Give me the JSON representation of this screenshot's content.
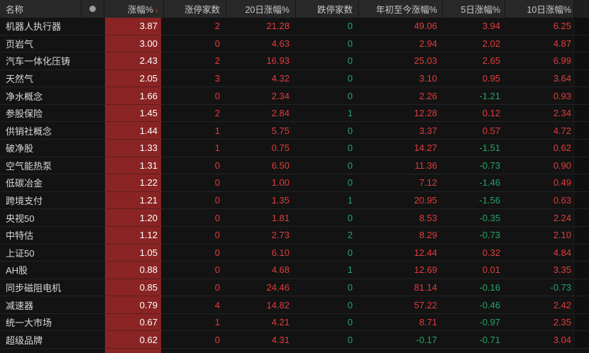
{
  "header": {
    "columns": [
      {
        "key": "name",
        "label": "名称"
      },
      {
        "key": "dot",
        "label": ""
      },
      {
        "key": "change",
        "label": "涨幅%"
      },
      {
        "key": "limit_up",
        "label": "涨停家数"
      },
      {
        "key": "d20",
        "label": "20日涨幅%"
      },
      {
        "key": "limit_down",
        "label": "跌停家数"
      },
      {
        "key": "ytd",
        "label": "年初至今涨幅%"
      },
      {
        "key": "d5",
        "label": "5日涨幅%"
      },
      {
        "key": "d10",
        "label": "10日涨幅%"
      }
    ],
    "sort_icon": "↓",
    "sorted_column": "涨幅%",
    "sort_direction": "desc"
  },
  "colors": {
    "up_red": "#e23c3c",
    "down_green": "#23a566",
    "heat_bar_red": "#8a2424",
    "header_bg": "#282828",
    "row_bg": "#131313",
    "bar_text": "#ffffff",
    "sort_arrow": "#e5472e"
  },
  "chart_data": {
    "type": "table",
    "columns": [
      "名称",
      "涨幅%",
      "涨停家数",
      "20日涨幅%",
      "跌停家数",
      "年初至今涨幅%",
      "5日涨幅%",
      "10日涨幅%"
    ],
    "rows_note": "sorted by 涨幅% descending"
  },
  "rows": [
    {
      "name": "机器人执行器",
      "change": "3.87",
      "limit_up": "2",
      "d20": "21.28",
      "limit_down": "0",
      "ytd": "49.06",
      "d5": "3.94",
      "d10": "6.25"
    },
    {
      "name": "页岩气",
      "change": "3.00",
      "limit_up": "0",
      "d20": "4.63",
      "limit_down": "0",
      "ytd": "2.94",
      "d5": "2.02",
      "d10": "4.87"
    },
    {
      "name": "汽车一体化压铸",
      "change": "2.43",
      "limit_up": "2",
      "d20": "16.93",
      "limit_down": "0",
      "ytd": "25.03",
      "d5": "2.65",
      "d10": "6.99"
    },
    {
      "name": "天然气",
      "change": "2.05",
      "limit_up": "3",
      "d20": "4.32",
      "limit_down": "0",
      "ytd": "3.10",
      "d5": "0.95",
      "d10": "3.64"
    },
    {
      "name": "净水概念",
      "change": "1.66",
      "limit_up": "0",
      "d20": "2.34",
      "limit_down": "0",
      "ytd": "2.26",
      "d5": "-1.21",
      "d10": "0.93"
    },
    {
      "name": "参股保险",
      "change": "1.45",
      "limit_up": "2",
      "d20": "2.84",
      "limit_down": "1",
      "ytd": "12.28",
      "d5": "0.12",
      "d10": "2.34"
    },
    {
      "name": "供销社概念",
      "change": "1.44",
      "limit_up": "1",
      "d20": "5.75",
      "limit_down": "0",
      "ytd": "3.37",
      "d5": "0.57",
      "d10": "4.72"
    },
    {
      "name": "破净股",
      "change": "1.33",
      "limit_up": "1",
      "d20": "0.75",
      "limit_down": "0",
      "ytd": "14.27",
      "d5": "-1.51",
      "d10": "0.62"
    },
    {
      "name": "空气能热泵",
      "change": "1.31",
      "limit_up": "0",
      "d20": "6.50",
      "limit_down": "0",
      "ytd": "11.36",
      "d5": "-0.73",
      "d10": "0.90"
    },
    {
      "name": "低碳冶金",
      "change": "1.22",
      "limit_up": "0",
      "d20": "1.00",
      "limit_down": "0",
      "ytd": "7.12",
      "d5": "-1.46",
      "d10": "0.49"
    },
    {
      "name": "跨境支付",
      "change": "1.21",
      "limit_up": "0",
      "d20": "1.35",
      "limit_down": "1",
      "ytd": "20.95",
      "d5": "-1.56",
      "d10": "0.63"
    },
    {
      "name": "央视50",
      "change": "1.20",
      "limit_up": "0",
      "d20": "1.81",
      "limit_down": "0",
      "ytd": "8.53",
      "d5": "-0.35",
      "d10": "2.24"
    },
    {
      "name": "中特估",
      "change": "1.12",
      "limit_up": "0",
      "d20": "2.73",
      "limit_down": "2",
      "ytd": "8.29",
      "d5": "-0.73",
      "d10": "2.10"
    },
    {
      "name": "上证50",
      "change": "1.05",
      "limit_up": "0",
      "d20": "6.10",
      "limit_down": "0",
      "ytd": "12.44",
      "d5": "0.32",
      "d10": "4.84"
    },
    {
      "name": "AH股",
      "change": "0.88",
      "limit_up": "0",
      "d20": "4.68",
      "limit_down": "1",
      "ytd": "12.69",
      "d5": "0.01",
      "d10": "3.35"
    },
    {
      "name": "同步磁阻电机",
      "change": "0.85",
      "limit_up": "0",
      "d20": "24.46",
      "limit_down": "0",
      "ytd": "81.14",
      "d5": "-0.16",
      "d10": "-0.73"
    },
    {
      "name": "减速器",
      "change": "0.79",
      "limit_up": "4",
      "d20": "14.82",
      "limit_down": "0",
      "ytd": "57.22",
      "d5": "-0.46",
      "d10": "2.42"
    },
    {
      "name": "统一大市场",
      "change": "0.67",
      "limit_up": "1",
      "d20": "4.21",
      "limit_down": "0",
      "ytd": "8.71",
      "d5": "-0.97",
      "d10": "2.35"
    },
    {
      "name": "超级品牌",
      "change": "0.62",
      "limit_up": "0",
      "d20": "4.31",
      "limit_down": "0",
      "ytd": "-0.17",
      "d5": "-0.71",
      "d10": "3.04"
    }
  ]
}
